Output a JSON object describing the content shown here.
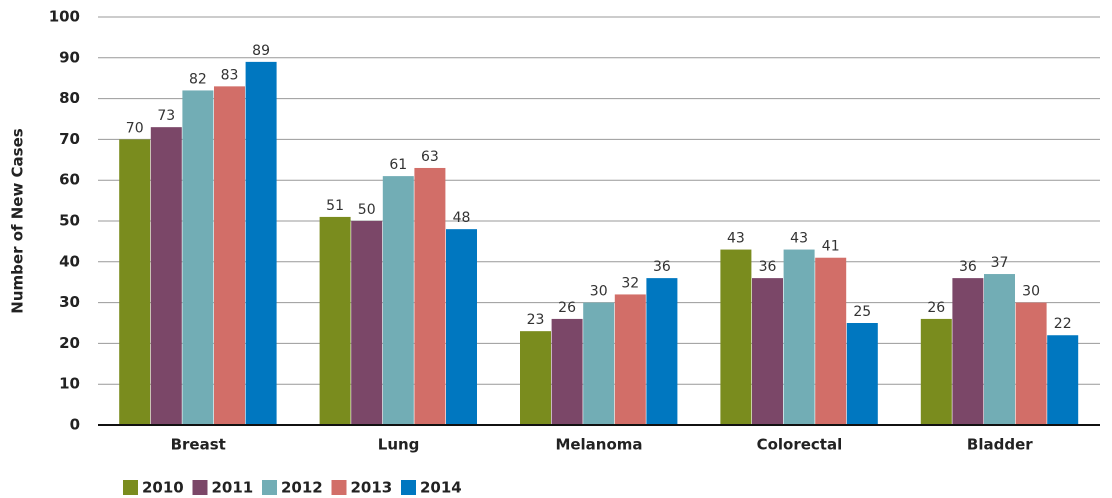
{
  "chart_data": {
    "type": "bar",
    "y_label": "Number of New Cases",
    "categories": [
      "Breast",
      "Lung",
      "Melanoma",
      "Colorectal",
      "Bladder"
    ],
    "series": [
      {
        "name": "2010",
        "color": "#7a8c1e",
        "values": [
          70,
          51,
          23,
          43,
          26
        ]
      },
      {
        "name": "2011",
        "color": "#7b4768",
        "values": [
          73,
          50,
          26,
          36,
          36
        ]
      },
      {
        "name": "2012",
        "color": "#72adb5",
        "values": [
          82,
          61,
          30,
          43,
          37
        ]
      },
      {
        "name": "2013",
        "color": "#d26e68",
        "values": [
          83,
          63,
          32,
          41,
          30
        ]
      },
      {
        "name": "2014",
        "color": "#0077c0",
        "values": [
          89,
          48,
          36,
          25,
          22
        ]
      }
    ],
    "ylim": [
      0,
      100
    ],
    "yticks": [
      0,
      10,
      20,
      30,
      40,
      50,
      60,
      70,
      80,
      90,
      100
    ],
    "grid": true
  }
}
